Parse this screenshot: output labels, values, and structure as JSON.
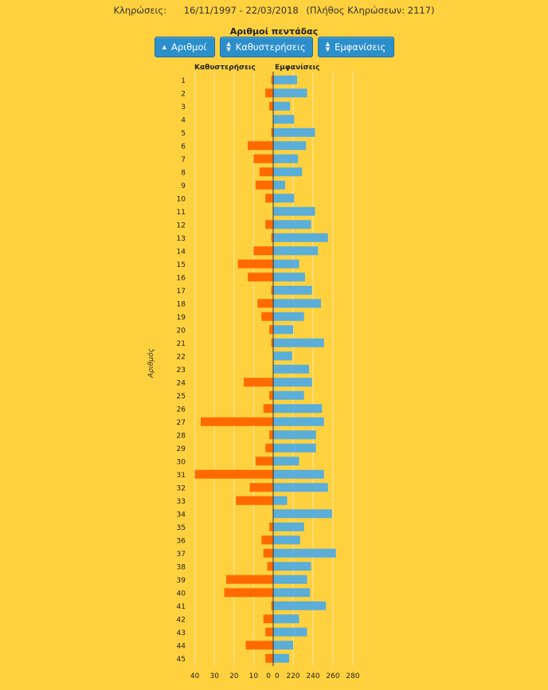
{
  "header": {
    "draws_label": "Κληρώσεις:",
    "date_range": "16/11/1997 - 22/03/2018",
    "draws_count": "(Πλήθος Κληρώσεων: 2117)"
  },
  "buttons": {
    "numbers": "Αριθμοί",
    "delays": "Καθυστερήσεις",
    "appearances": "Εμφανίσεις"
  },
  "colors": {
    "background": "#ffd13e",
    "delay_bar": "#ff6a00",
    "appearance_bar": "#5aaed8",
    "button": "#2b8fcc"
  },
  "chart_data": {
    "type": "bar",
    "orientation": "horizontal-diverging",
    "title": "Αριθμοί πεντάδας",
    "ylabel": "Αριθμός",
    "categories": [
      "1",
      "2",
      "3",
      "4",
      "5",
      "6",
      "7",
      "8",
      "9",
      "10",
      "11",
      "12",
      "13",
      "14",
      "15",
      "16",
      "17",
      "18",
      "19",
      "20",
      "21",
      "22",
      "23",
      "24",
      "25",
      "26",
      "27",
      "28",
      "29",
      "30",
      "31",
      "32",
      "33",
      "34",
      "35",
      "36",
      "37",
      "38",
      "39",
      "40",
      "41",
      "42",
      "43",
      "44",
      "45"
    ],
    "series": [
      {
        "name": "Καθυστερήσεις",
        "axis": "left",
        "xlim": [
          0,
          40
        ],
        "ticks": [
          40,
          30,
          20,
          10,
          0
        ],
        "values": [
          1,
          4,
          2,
          0,
          1,
          13,
          10,
          7,
          9,
          4,
          0,
          4,
          1,
          10,
          18,
          13,
          1,
          8,
          6,
          2,
          1,
          0,
          0,
          15,
          2,
          5,
          37,
          2,
          4,
          9,
          40,
          12,
          19,
          0,
          2,
          6,
          5,
          3,
          24,
          25,
          1,
          5,
          4,
          14,
          4
        ]
      },
      {
        "name": "Εμφανίσεις",
        "axis": "right",
        "xlim": [
          200,
          280
        ],
        "ticks": [
          200,
          220,
          240,
          260,
          280
        ],
        "values": [
          224,
          234,
          217,
          221,
          242,
          233,
          225,
          229,
          212,
          221,
          242,
          238,
          255,
          245,
          226,
          232,
          239,
          248,
          231,
          220,
          251,
          219,
          236,
          239,
          231,
          249,
          251,
          243,
          243,
          226,
          251,
          255,
          214,
          259,
          231,
          227,
          263,
          238,
          234,
          237,
          253,
          226,
          234,
          220,
          216
        ]
      }
    ]
  }
}
